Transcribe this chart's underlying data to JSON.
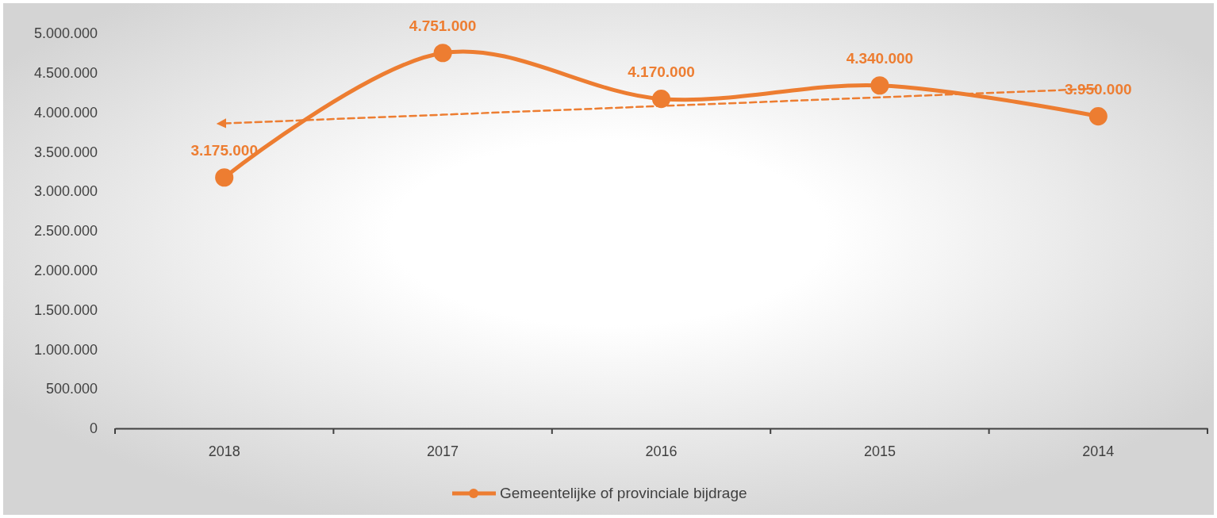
{
  "chart_data": {
    "type": "line",
    "categories": [
      "2018",
      "2017",
      "2016",
      "2015",
      "2014"
    ],
    "series": [
      {
        "name": "Gemeentelijke of provinciale bijdrage",
        "color": "#ed7d31",
        "values": [
          3175000,
          4751000,
          4170000,
          4340000,
          3950000
        ],
        "value_labels": [
          "3.175.000",
          "4.751.000",
          "4.170.000",
          "4.340.000",
          "3.950.000"
        ],
        "marker": "circle",
        "line_style": "solid"
      },
      {
        "type": "line",
        "color": "#ed7d31",
        "values": [
          3860000,
          3970000,
          4080000,
          4190000,
          4300000
        ],
        "marker": "none",
        "line_style": "dashed"
      }
    ],
    "ylim": [
      0,
      5000000
    ],
    "yticks": [
      0,
      {
        "value": 500000,
        "label": "500.000"
      },
      {
        "value": 1000000,
        "label": "1.000.000"
      },
      {
        "value": 1500000,
        "label": "1.500.000"
      },
      {
        "value": 2000000,
        "label": "2.000.000"
      },
      {
        "value": 2500000,
        "label": "2.500.000"
      },
      {
        "value": 3000000,
        "label": "3.000.000"
      },
      {
        "value": 3500000,
        "label": "3.500.000"
      },
      {
        "value": 4000000,
        "label": "4.000.000"
      },
      {
        "value": 4500000,
        "label": "4.500.000"
      },
      {
        "value": 5000000,
        "label": "5.000.000"
      }
    ],
    "grid": false,
    "legend": "bottom"
  }
}
